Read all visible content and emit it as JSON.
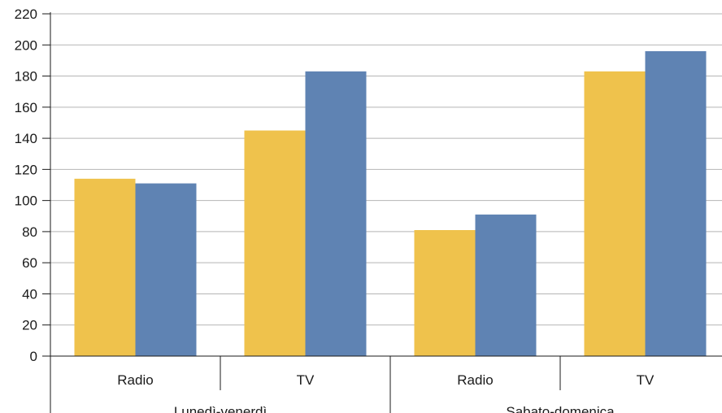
{
  "chart_data": {
    "type": "bar",
    "y_ticks": [
      "0",
      "20",
      "40",
      "60",
      "80",
      "100",
      "120",
      "140",
      "160",
      "180",
      "200",
      "220"
    ],
    "ylim": [
      0,
      220
    ],
    "grid": true,
    "legend": "none",
    "groups": [
      {
        "label": "Lunedì-venerdì",
        "categories": [
          "Radio",
          "TV"
        ]
      },
      {
        "label": "Sabato-domenica",
        "categories": [
          "Radio",
          "TV"
        ]
      }
    ],
    "categories": [
      "Radio",
      "TV",
      "Radio",
      "TV"
    ],
    "series": [
      {
        "color": "#efc24c",
        "values": [
          114,
          145,
          81,
          183
        ]
      },
      {
        "color": "#5f83b3",
        "values": [
          111,
          183,
          91,
          196
        ]
      }
    ]
  }
}
